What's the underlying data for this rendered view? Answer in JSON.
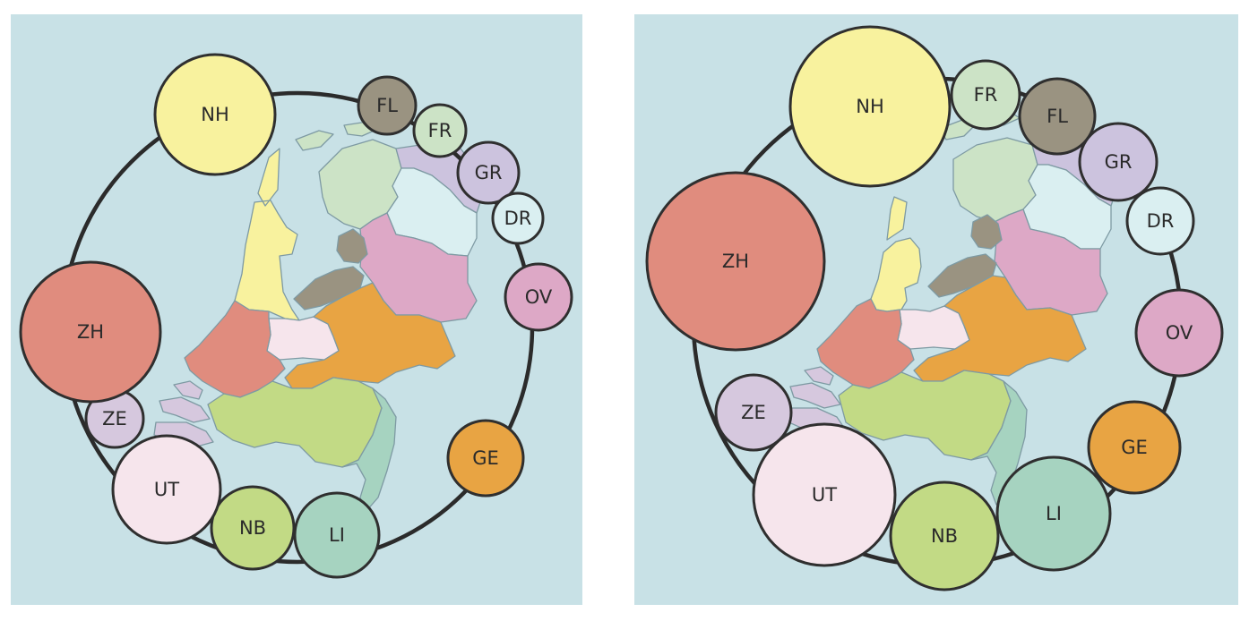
{
  "colors": {
    "NH": "#f8f29e",
    "FL": "#9a9381",
    "FR": "#cce3c6",
    "GR": "#ccc3de",
    "DR": "#daeff1",
    "OV": "#dda8c6",
    "GE": "#e8a443",
    "LI": "#a6d3c0",
    "NB": "#c2da85",
    "UT": "#f6e5ec",
    "ZE": "#d6c8de",
    "ZH": "#e08c7e",
    "water": "#c8e1e6"
  },
  "maps": [
    {
      "name": "left-map",
      "provinces": [
        {
          "code": "NH",
          "label": "NH"
        },
        {
          "code": "FL",
          "label": "FL"
        },
        {
          "code": "FR",
          "label": "FR"
        },
        {
          "code": "GR",
          "label": "GR"
        },
        {
          "code": "DR",
          "label": "DR"
        },
        {
          "code": "OV",
          "label": "OV"
        },
        {
          "code": "GE",
          "label": "GE"
        },
        {
          "code": "LI",
          "label": "LI"
        },
        {
          "code": "NB",
          "label": "NB"
        },
        {
          "code": "UT",
          "label": "UT"
        },
        {
          "code": "ZE",
          "label": "ZE"
        },
        {
          "code": "ZH",
          "label": "ZH"
        }
      ]
    },
    {
      "name": "right-map",
      "provinces": [
        {
          "code": "NH",
          "label": "NH"
        },
        {
          "code": "FR",
          "label": "FR"
        },
        {
          "code": "FL",
          "label": "FL"
        },
        {
          "code": "GR",
          "label": "GR"
        },
        {
          "code": "DR",
          "label": "DR"
        },
        {
          "code": "OV",
          "label": "OV"
        },
        {
          "code": "GE",
          "label": "GE"
        },
        {
          "code": "LI",
          "label": "LI"
        },
        {
          "code": "NB",
          "label": "NB"
        },
        {
          "code": "UT",
          "label": "UT"
        },
        {
          "code": "ZE",
          "label": "ZE"
        },
        {
          "code": "ZH",
          "label": "ZH"
        }
      ]
    }
  ]
}
